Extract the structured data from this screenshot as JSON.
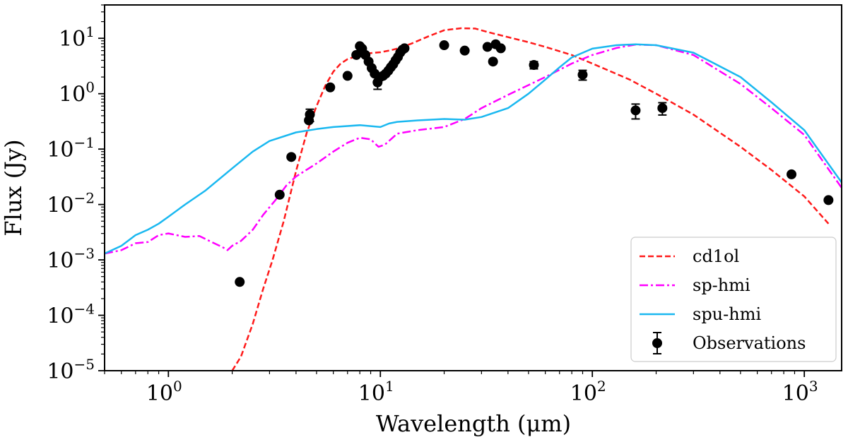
{
  "chart_data": {
    "type": "line",
    "xscale": "log",
    "yscale": "log",
    "xlabel": "Wavelength (μm)",
    "ylabel": "Flux (Jy)",
    "xlim": [
      0.5,
      1500
    ],
    "ylim": [
      1e-05,
      40
    ],
    "x_ticks": [
      {
        "value": 1,
        "base": "10",
        "exp": "0"
      },
      {
        "value": 10,
        "base": "10",
        "exp": "1"
      },
      {
        "value": 100,
        "base": "10",
        "exp": "2"
      },
      {
        "value": 1000,
        "base": "10",
        "exp": "3"
      }
    ],
    "y_ticks": [
      {
        "value": 10,
        "base": "10",
        "exp": "1"
      },
      {
        "value": 1,
        "base": "10",
        "exp": "0"
      },
      {
        "value": 0.1,
        "base": "10",
        "exp": "−1"
      },
      {
        "value": 0.01,
        "base": "10",
        "exp": "−2"
      },
      {
        "value": 0.001,
        "base": "10",
        "exp": "−3"
      },
      {
        "value": 0.0001,
        "base": "10",
        "exp": "−4"
      },
      {
        "value": 1e-05,
        "base": "10",
        "exp": "−5"
      }
    ],
    "legend": {
      "placement": "lower-right",
      "entries": [
        "cd1ol",
        "sp-hmi",
        "spu-hmi",
        "Observations"
      ]
    },
    "series": [
      {
        "name": "cd1ol",
        "color": "#ff1a1a",
        "style": "dashed",
        "x": [
          2.0,
          2.2,
          2.5,
          2.8,
          3.1,
          3.5,
          4.0,
          4.5,
          5.0,
          5.5,
          6.0,
          6.5,
          7.0,
          8.0,
          9.0,
          10.0,
          11.0,
          12.0,
          14.0,
          17.0,
          20.0,
          24.0,
          28.0,
          32.0,
          40.0,
          50.0,
          60.0,
          80.0,
          100.0,
          150.0,
          200.0,
          300.0,
          500.0,
          700.0,
          1000.0,
          1300.0
        ],
        "y": [
          1e-05,
          1.8e-05,
          7e-05,
          0.0003,
          0.001,
          0.005,
          0.04,
          0.2,
          0.6,
          1.4,
          2.5,
          3.5,
          4.2,
          5.0,
          5.4,
          5.6,
          6.0,
          6.5,
          8.0,
          11.0,
          14.0,
          15.2,
          15.0,
          13.0,
          10.5,
          8.5,
          7.0,
          5.0,
          3.5,
          1.8,
          1.0,
          0.42,
          0.11,
          0.042,
          0.014,
          0.0045
        ]
      },
      {
        "name": "sp-hmi",
        "color": "#ff00ff",
        "style": "dashdot",
        "x": [
          0.5,
          0.6,
          0.7,
          0.8,
          0.9,
          1.0,
          1.2,
          1.4,
          1.6,
          1.8,
          1.9,
          2.0,
          2.2,
          2.5,
          2.8,
          3.2,
          3.6,
          4.0,
          5.0,
          6.0,
          7.0,
          8.0,
          9.0,
          9.8,
          10.5,
          12.0,
          15.0,
          20.0,
          25.0,
          30.0,
          40.0,
          60.0,
          80.0,
          100.0,
          130.0,
          160.0,
          200.0,
          300.0,
          500.0,
          700.0,
          1000.0,
          1500.0
        ],
        "y": [
          0.0013,
          0.0015,
          0.002,
          0.0021,
          0.0028,
          0.003,
          0.0026,
          0.0027,
          0.0021,
          0.0017,
          0.0015,
          0.0018,
          0.0022,
          0.0035,
          0.0065,
          0.012,
          0.022,
          0.032,
          0.055,
          0.09,
          0.13,
          0.16,
          0.15,
          0.11,
          0.12,
          0.19,
          0.22,
          0.25,
          0.35,
          0.55,
          0.95,
          2.0,
          3.5,
          5.0,
          6.7,
          7.7,
          7.5,
          5.0,
          1.5,
          0.55,
          0.18,
          0.02
        ]
      },
      {
        "name": "spu-hmi",
        "color": "#1ab8f0",
        "style": "solid",
        "x": [
          0.5,
          0.6,
          0.7,
          0.8,
          0.9,
          1.0,
          1.2,
          1.5,
          2.0,
          2.5,
          3.0,
          4.0,
          5.0,
          6.0,
          8.0,
          9.0,
          10.0,
          11.0,
          12.0,
          15.0,
          20.0,
          25.0,
          30.0,
          40.0,
          50.0,
          60.0,
          70.0,
          80.0,
          100.0,
          130.0,
          160.0,
          200.0,
          300.0,
          500.0,
          700.0,
          1000.0,
          1500.0
        ],
        "y": [
          0.0013,
          0.0018,
          0.0028,
          0.0035,
          0.0045,
          0.006,
          0.01,
          0.018,
          0.045,
          0.09,
          0.14,
          0.2,
          0.23,
          0.25,
          0.27,
          0.26,
          0.25,
          0.29,
          0.31,
          0.33,
          0.35,
          0.34,
          0.38,
          0.55,
          1.0,
          1.8,
          3.0,
          4.5,
          6.5,
          7.5,
          7.8,
          7.5,
          5.5,
          2.0,
          0.7,
          0.22,
          0.025
        ]
      }
    ],
    "observations": {
      "name": "Observations",
      "color": "#000000",
      "x": [
        2.17,
        3.35,
        3.8,
        4.6,
        4.65,
        5.8,
        7.0,
        7.7,
        8.0,
        8.2,
        8.5,
        8.8,
        9.1,
        9.4,
        9.7,
        10.0,
        10.3,
        10.6,
        10.9,
        11.2,
        11.5,
        11.8,
        12.1,
        12.4,
        12.7,
        13.0,
        20.0,
        25.0,
        32.0,
        34.0,
        35.0,
        37.0,
        53.0,
        90.0,
        160.0,
        214.0,
        870.0,
        1300.0
      ],
      "y": [
        0.0004,
        0.015,
        0.072,
        0.33,
        0.42,
        1.3,
        2.1,
        5.0,
        7.2,
        6.5,
        5.0,
        3.8,
        2.9,
        2.3,
        1.6,
        2.0,
        2.1,
        2.3,
        2.6,
        3.0,
        3.4,
        4.0,
        4.6,
        5.5,
        6.2,
        6.6,
        7.5,
        6.0,
        7.0,
        3.8,
        7.8,
        6.6,
        3.3,
        2.2,
        0.5,
        0.55,
        0.035,
        0.012
      ],
      "yerr_frac": [
        0,
        0,
        0,
        0,
        0.25,
        0,
        0,
        0,
        0,
        0,
        0,
        0,
        0,
        0,
        0.25,
        0,
        0,
        0,
        0,
        0,
        0,
        0,
        0,
        0,
        0,
        0,
        0,
        0,
        0,
        0,
        0,
        0,
        0.15,
        0.2,
        0.3,
        0.25,
        0,
        0
      ]
    }
  }
}
